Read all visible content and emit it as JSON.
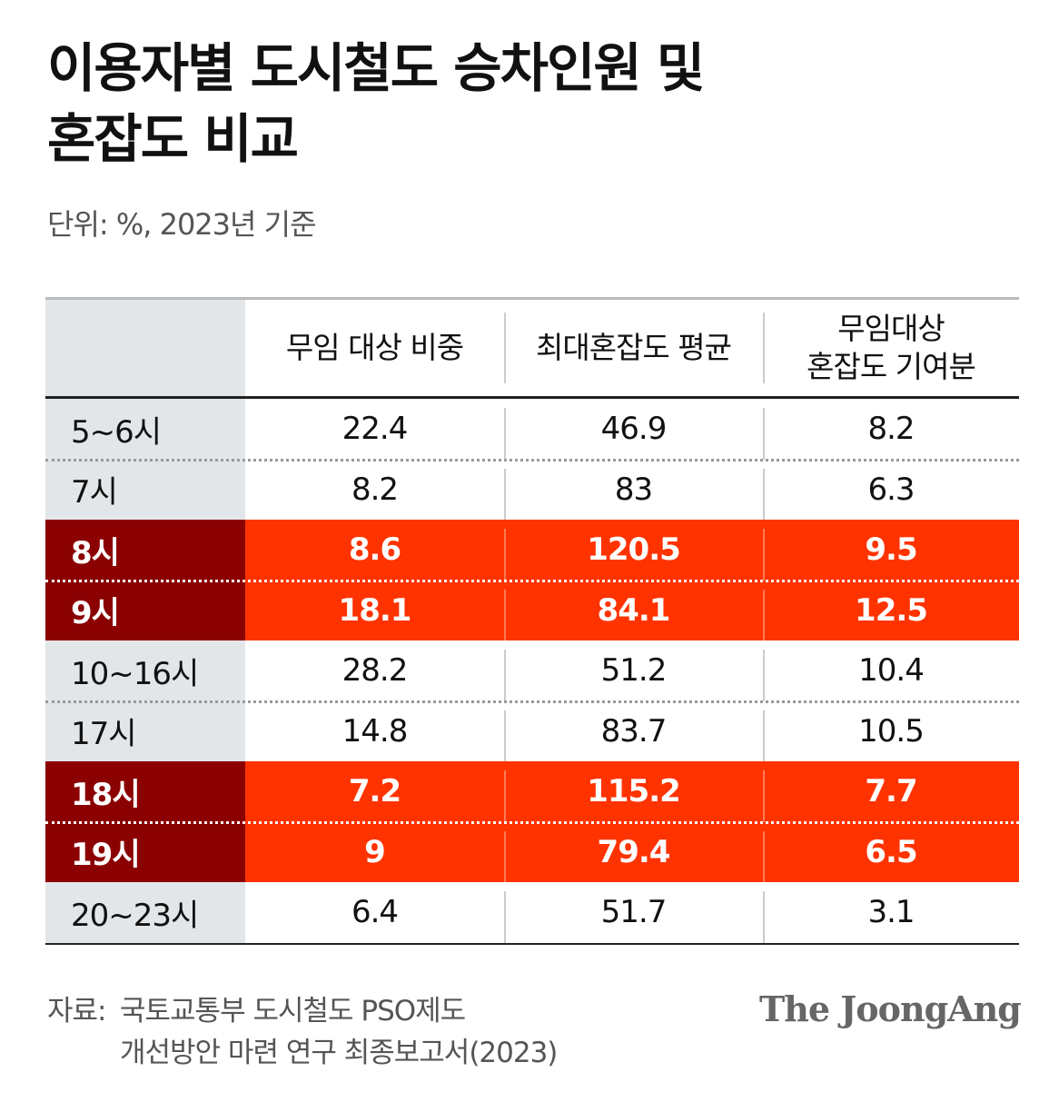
{
  "header": {
    "title": [
      "이용자별 도시철도 승차인원 및",
      "혼잡도 비교"
    ],
    "subtitle": "단위: %, 2023년 기준"
  },
  "table": {
    "columns": [
      [
        "무임 대상 비중"
      ],
      [
        "최대혼잡도 평균"
      ],
      [
        "무임대상",
        "혼잡도 기여분"
      ]
    ],
    "highlight_color": "#ff3300",
    "highlight_label_color": "#8b0000",
    "rows": [
      {
        "label": "5~6시",
        "values": [
          22.4,
          46.9,
          8.2
        ],
        "highlighted": false
      },
      {
        "label": "7시",
        "values": [
          8.2,
          83,
          6.3
        ],
        "highlighted": false
      },
      {
        "label": "8시",
        "values": [
          8.6,
          120.5,
          9.5
        ],
        "highlighted": true
      },
      {
        "label": "9시",
        "values": [
          18.1,
          84.1,
          12.5
        ],
        "highlighted": true
      },
      {
        "label": "10~16시",
        "values": [
          28.2,
          51.2,
          10.4
        ],
        "highlighted": false
      },
      {
        "label": "17시",
        "values": [
          14.8,
          83.7,
          10.5
        ],
        "highlighted": false
      },
      {
        "label": "18시",
        "values": [
          7.2,
          115.2,
          7.7
        ],
        "highlighted": true
      },
      {
        "label": "19시",
        "values": [
          9,
          79.4,
          6.5
        ],
        "highlighted": true
      },
      {
        "label": "20~23시",
        "values": [
          6.4,
          51.7,
          3.1
        ],
        "highlighted": false
      }
    ]
  },
  "footer": {
    "source_label": "자료:",
    "source": [
      "국토교통부 도시철도 PSO제도",
      "개선방안 마련 연구 최종보고서(2023)"
    ],
    "logo": "The JoongAng"
  }
}
